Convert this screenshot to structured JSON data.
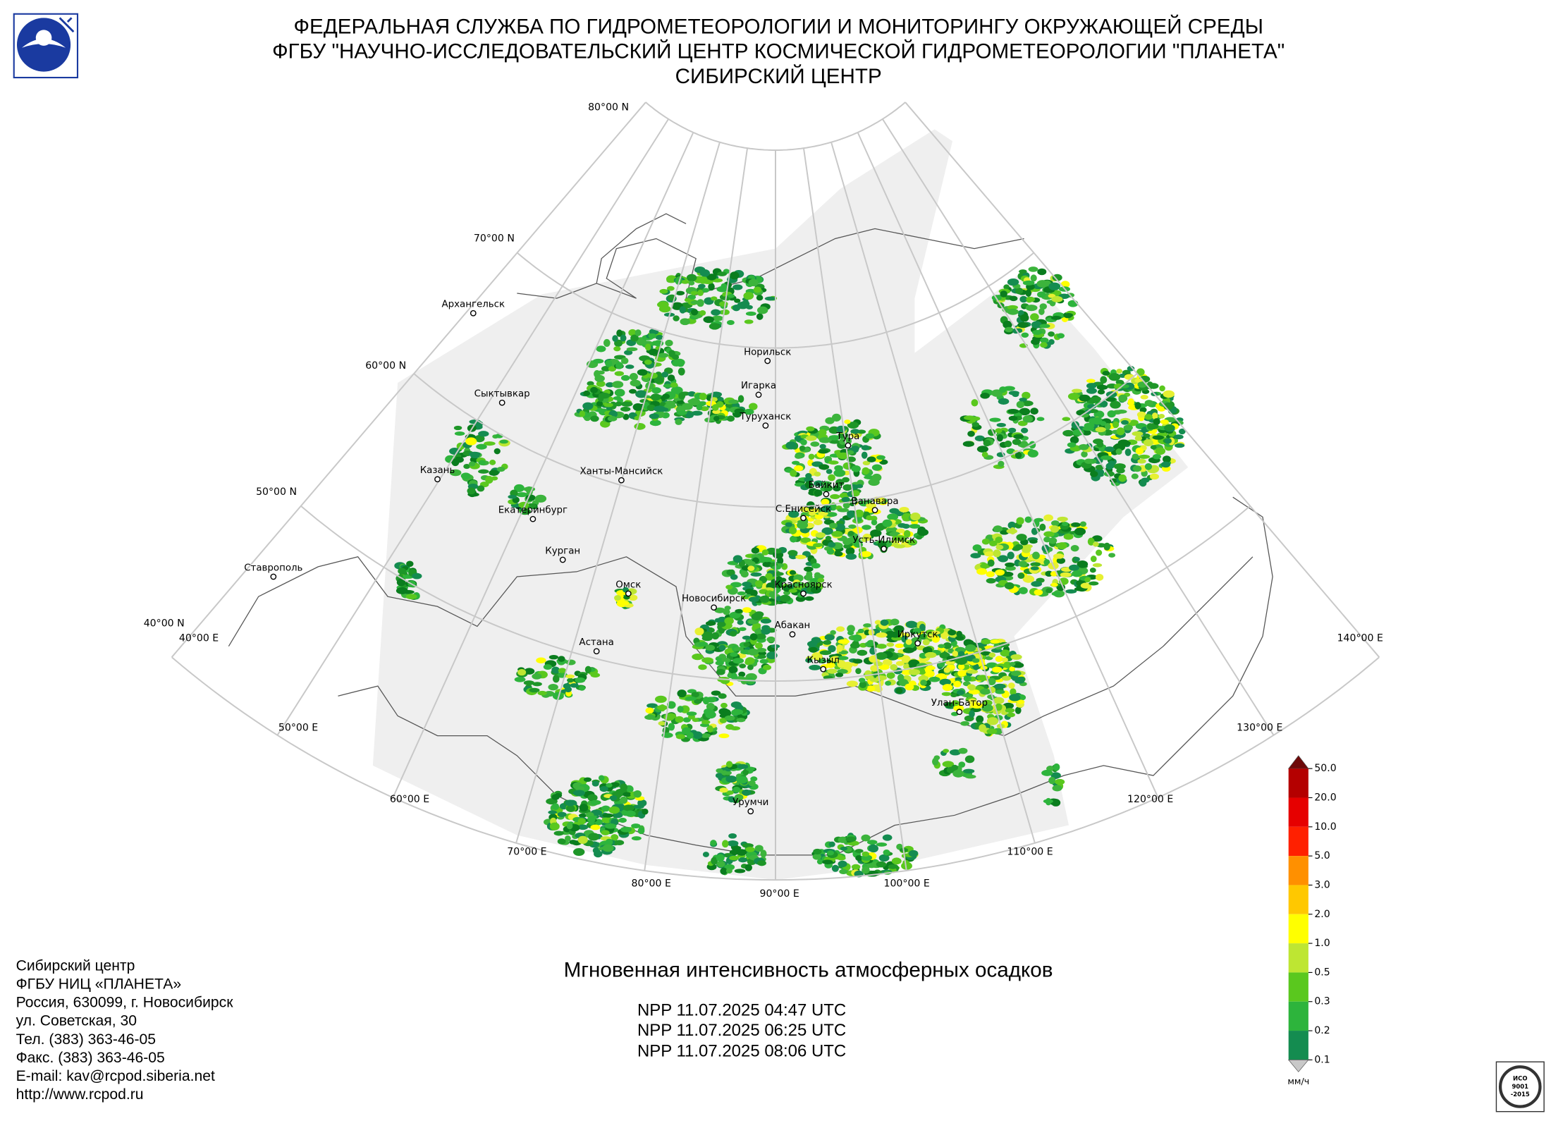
{
  "header": {
    "lines": [
      "ФЕДЕРАЛЬНАЯ СЛУЖБА ПО ГИДРОМЕТЕОРОЛОГИИ И МОНИТОРИНГУ ОКРУЖАЮЩЕЙ СРЕДЫ",
      "ФГБУ \"НАУЧНО-ИССЛЕДОВАТЕЛЬСКИЙ ЦЕНТР КОСМИЧЕСКОЙ ГИДРОМЕТЕОРОЛОГИИ \"ПЛАНЕТА\"",
      "СИБИРСКИЙ ЦЕНТР"
    ]
  },
  "map": {
    "lat_labels": [
      "80°00 N",
      "70°00 N",
      "60°00 N",
      "50°00 N",
      "40°00 N"
    ],
    "lon_labels": [
      "40°00 E",
      "50°00 E",
      "60°00 E",
      "70°00 E",
      "80°00 E",
      "90°00 E",
      "100°00 E",
      "110°00 E",
      "120°00 E",
      "130°00 E",
      "140°00 E"
    ],
    "cities": [
      "Архангельск",
      "Сыктывкар",
      "Казань",
      "Екатеринбург",
      "Курган",
      "Ставрополь",
      "Ханты-Мансийск",
      "Омск",
      "Астана",
      "Новосибирск",
      "Норильск",
      "Игарка",
      "Туруханск",
      "Тура",
      "Байкит",
      "С.Енисейск",
      "Ванавара",
      "Усть-Илимск",
      "Красноярск",
      "Абакан",
      "Кызыл",
      "Иркутск",
      "Улан-Батор",
      "Урумчи"
    ]
  },
  "title": "Мгновенная интенсивность атмосферных осадков",
  "passes": [
    "NPP 11.07.2025  04:47 UTC",
    "NPP 11.07.2025  06:25 UTC",
    "NPP 11.07.2025  08:06 UTC"
  ],
  "address": {
    "lines": [
      "Сибирский центр",
      "ФГБУ НИЦ «ПЛАНЕТА»",
      "Россия, 630099, г. Новосибирск",
      "ул. Советская, 30",
      "Тел. (383) 363-46-05",
      "Факс. (383) 363-46-05",
      "E-mail: kav@rcpod.siberia.net",
      "http://www.rcpod.ru"
    ]
  },
  "colorbar": {
    "unit": "мм/ч",
    "levels": [
      {
        "value": 50,
        "label": "50.0"
      },
      {
        "value": 20,
        "label": "20.0"
      },
      {
        "value": 10,
        "label": "10.0"
      },
      {
        "value": 5,
        "label": "5.0"
      },
      {
        "value": 3,
        "label": "3.0"
      },
      {
        "value": 2,
        "label": "2.0"
      },
      {
        "value": 1,
        "label": "1.0"
      },
      {
        "value": 0.5,
        "label": "0.5"
      },
      {
        "value": 0.3,
        "label": "0.3"
      },
      {
        "value": 0.2,
        "label": "0.2"
      },
      {
        "value": 0.1,
        "label": "0.1"
      }
    ],
    "colors": [
      "#b40000",
      "#e60000",
      "#ff2000",
      "#ff9000",
      "#ffc800",
      "#ffff00",
      "#bee632",
      "#5ac81e",
      "#2db43c",
      "#148c50"
    ],
    "over_color": "#6e0a0a",
    "under_color": "#c8c8c8"
  },
  "iso_logo": {
    "lines": [
      "ИСО",
      "9001",
      "-2015"
    ]
  }
}
